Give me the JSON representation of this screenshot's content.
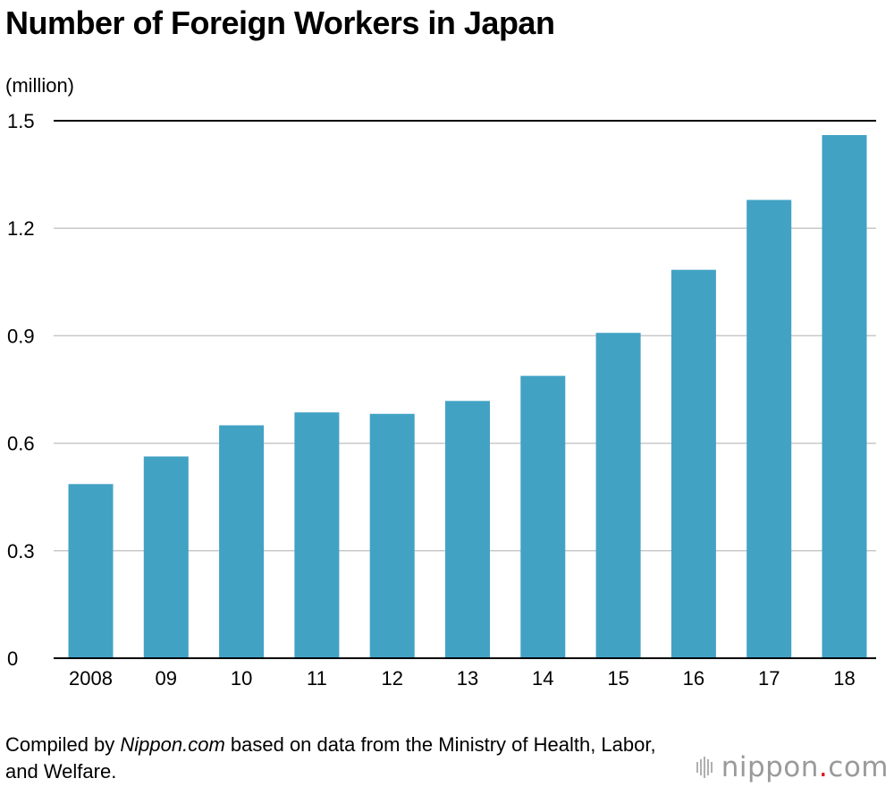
{
  "title": "Number of Foreign Workers in Japan",
  "unit_label": "(million)",
  "footer": {
    "prefix": "Compiled by ",
    "source_name": "Nippon.com",
    "suffix": " based on data from the Ministry of Health, Labor, and Welfare."
  },
  "logo": {
    "name_left": "nippon",
    "dot": ".",
    "name_right": "com"
  },
  "colors": {
    "bar": "#42a2c4",
    "gridline": "#c8c8c8",
    "axis": "#000000",
    "logo_dot": "#e60012"
  },
  "chart_data": {
    "type": "bar",
    "categories": [
      "2008",
      "09",
      "10",
      "11",
      "12",
      "13",
      "14",
      "15",
      "16",
      "17",
      "18"
    ],
    "values": [
      0.486,
      0.563,
      0.65,
      0.686,
      0.682,
      0.718,
      0.788,
      0.908,
      1.084,
      1.279,
      1.46
    ],
    "yticks": [
      "0",
      "0.3",
      "0.6",
      "0.9",
      "1.2",
      "1.5"
    ],
    "ylim": [
      0,
      1.5
    ],
    "ylabel": "(million)",
    "grid": true
  }
}
